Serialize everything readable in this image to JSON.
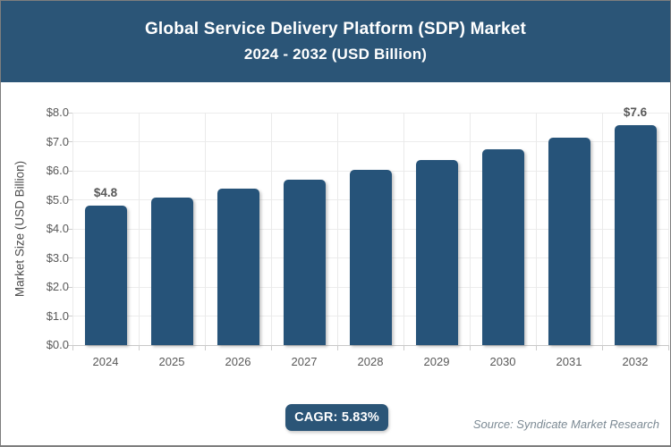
{
  "header": {
    "title": "Global Service Delivery Platform (SDP) Market",
    "subtitle": "2024 - 2032 (USD Billion)",
    "background": "#2B5577",
    "text_color": "#FFFFFF"
  },
  "chart_data": {
    "type": "bar",
    "title": "Global Service Delivery Platform (SDP) Market",
    "subtitle": "2024 - 2032 (USD Billion)",
    "categories": [
      "2024",
      "2025",
      "2026",
      "2027",
      "2028",
      "2029",
      "2030",
      "2031",
      "2032"
    ],
    "values": [
      4.8,
      5.08,
      5.38,
      5.69,
      6.02,
      6.37,
      6.74,
      7.14,
      7.56
    ],
    "point_labels": [
      "$4.8",
      "",
      "",
      "",
      "",
      "",
      "",
      "",
      "$7.6"
    ],
    "xlabel": "",
    "ylabel": "Market Size (USD Billion)",
    "ylim": [
      0,
      8
    ],
    "ytick_step": 1,
    "ytick_labels": [
      "$0.0",
      "$1.0",
      "$2.0",
      "$3.0",
      "$4.0",
      "$5.0",
      "$6.0",
      "$7.0",
      "$8.0"
    ],
    "grid": true,
    "legend": false,
    "bar_color": "#265379",
    "tick_color": "#595959"
  },
  "footer": {
    "cagr_label": "CAGR: 5.83%",
    "source": "Source: Syndicate Market Research"
  }
}
